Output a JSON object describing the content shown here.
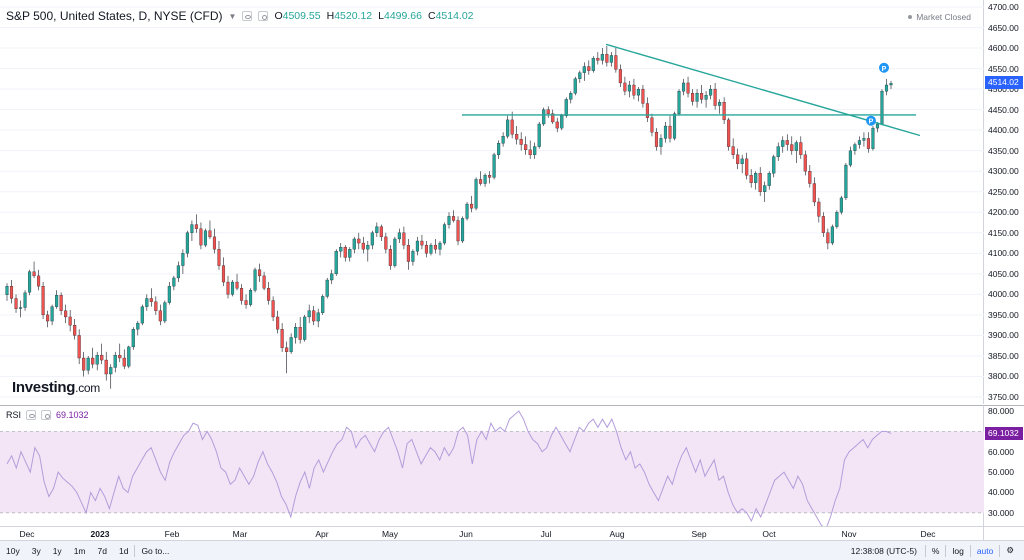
{
  "legend": {
    "symbol": "S&P 500, United States, D, NYSE (CFD)",
    "ohlc": [
      {
        "key": "O",
        "value": "4509.55"
      },
      {
        "key": "H",
        "value": "4520.12"
      },
      {
        "key": "L",
        "value": "4499.66"
      },
      {
        "key": "C",
        "value": "4514.02"
      }
    ]
  },
  "market_status": "Market Closed",
  "last_price_label": "4514.02",
  "logo": {
    "main": "Investing",
    "sub": ".com"
  },
  "rsi": {
    "name": "RSI",
    "value": "69.1032",
    "ticks": [
      "80.000",
      "70.000",
      "60.000",
      "50.000",
      "40.000",
      "30.000"
    ]
  },
  "price_ticks": [
    "4700.00",
    "4650.00",
    "4600.00",
    "4550.00",
    "4500.00",
    "4450.00",
    "4400.00",
    "4350.00",
    "4300.00",
    "4250.00",
    "4200.00",
    "4150.00",
    "4100.00",
    "4050.00",
    "4000.00",
    "3950.00",
    "3900.00",
    "3850.00",
    "3800.00",
    "3750.00"
  ],
  "time_ticks": [
    "Dec",
    "2023",
    "Feb",
    "Mar",
    "Apr",
    "May",
    "Jun",
    "Jul",
    "Aug",
    "Sep",
    "Oct",
    "Nov",
    "Dec"
  ],
  "toolbar": {
    "ranges": [
      "10y",
      "3y",
      "1y",
      "1m",
      "7d",
      "1d"
    ],
    "goto": "Go to...",
    "clock": "12:38:08 (UTC-5)",
    "percent": "%",
    "log": "log",
    "auto": "auto"
  },
  "colors": {
    "up": "#26a69a",
    "down": "#ef5350",
    "trend": "#26a69a",
    "rsi_line": "#b39ddb",
    "rsi_band": "#f3e5f5",
    "accent": "#2962ff"
  },
  "chart_data": {
    "type": "candlestick",
    "ylim": [
      3725,
      4710
    ],
    "candles": [
      [
        3999,
        4027,
        3984,
        4020
      ],
      [
        4020,
        4035,
        3978,
        3990
      ],
      [
        3990,
        4000,
        3955,
        3965
      ],
      [
        3966,
        3985,
        3944,
        3968
      ],
      [
        3968,
        4010,
        3960,
        4004
      ],
      [
        4005,
        4060,
        3998,
        4055
      ],
      [
        4055,
        4080,
        4040,
        4045
      ],
      [
        4045,
        4060,
        4010,
        4020
      ],
      [
        4020,
        4030,
        3940,
        3950
      ],
      [
        3950,
        3960,
        3920,
        3935
      ],
      [
        3935,
        3975,
        3925,
        3970
      ],
      [
        3970,
        4010,
        3965,
        3998
      ],
      [
        3998,
        4005,
        3950,
        3960
      ],
      [
        3960,
        3975,
        3930,
        3945
      ],
      [
        3945,
        3962,
        3910,
        3925
      ],
      [
        3925,
        3940,
        3890,
        3900
      ],
      [
        3900,
        3915,
        3830,
        3845
      ],
      [
        3845,
        3860,
        3800,
        3815
      ],
      [
        3815,
        3850,
        3805,
        3845
      ],
      [
        3845,
        3870,
        3820,
        3830
      ],
      [
        3830,
        3860,
        3815,
        3852
      ],
      [
        3852,
        3880,
        3830,
        3840
      ],
      [
        3840,
        3860,
        3790,
        3806
      ],
      [
        3806,
        3830,
        3770,
        3822
      ],
      [
        3822,
        3860,
        3810,
        3852
      ],
      [
        3852,
        3880,
        3835,
        3845
      ],
      [
        3845,
        3866,
        3818,
        3825
      ],
      [
        3825,
        3875,
        3820,
        3872
      ],
      [
        3872,
        3920,
        3865,
        3915
      ],
      [
        3915,
        3935,
        3900,
        3930
      ],
      [
        3930,
        3975,
        3925,
        3970
      ],
      [
        3970,
        4000,
        3960,
        3990
      ],
      [
        3990,
        4015,
        3970,
        3982
      ],
      [
        3982,
        3995,
        3950,
        3960
      ],
      [
        3960,
        3975,
        3925,
        3935
      ],
      [
        3935,
        3985,
        3930,
        3980
      ],
      [
        3980,
        4030,
        3975,
        4020
      ],
      [
        4020,
        4045,
        4010,
        4040
      ],
      [
        4040,
        4080,
        4030,
        4070
      ],
      [
        4070,
        4110,
        4050,
        4100
      ],
      [
        4100,
        4155,
        4090,
        4150
      ],
      [
        4150,
        4180,
        4130,
        4170
      ],
      [
        4170,
        4195,
        4150,
        4160
      ],
      [
        4160,
        4175,
        4110,
        4120
      ],
      [
        4120,
        4160,
        4115,
        4155
      ],
      [
        4155,
        4180,
        4135,
        4140
      ],
      [
        4140,
        4160,
        4100,
        4110
      ],
      [
        4110,
        4130,
        4060,
        4070
      ],
      [
        4070,
        4090,
        4020,
        4030
      ],
      [
        4030,
        4045,
        3990,
        4000
      ],
      [
        4000,
        4035,
        3995,
        4030
      ],
      [
        4030,
        4050,
        4010,
        4015
      ],
      [
        4015,
        4025,
        3975,
        3985
      ],
      [
        3985,
        4000,
        3965,
        3975
      ],
      [
        3975,
        4015,
        3970,
        4010
      ],
      [
        4010,
        4065,
        4005,
        4060
      ],
      [
        4060,
        4075,
        4030,
        4045
      ],
      [
        4045,
        4055,
        4010,
        4015
      ],
      [
        4015,
        4030,
        3975,
        3985
      ],
      [
        3985,
        3995,
        3935,
        3945
      ],
      [
        3945,
        3960,
        3905,
        3915
      ],
      [
        3915,
        3930,
        3860,
        3870
      ],
      [
        3870,
        3885,
        3808,
        3860
      ],
      [
        3860,
        3905,
        3855,
        3895
      ],
      [
        3895,
        3930,
        3880,
        3920
      ],
      [
        3920,
        3945,
        3880,
        3890
      ],
      [
        3890,
        3950,
        3885,
        3945
      ],
      [
        3945,
        3975,
        3930,
        3960
      ],
      [
        3960,
        3972,
        3925,
        3935
      ],
      [
        3935,
        3965,
        3920,
        3955
      ],
      [
        3955,
        4000,
        3950,
        3995
      ],
      [
        3995,
        4040,
        3990,
        4035
      ],
      [
        4035,
        4060,
        4025,
        4050
      ],
      [
        4050,
        4110,
        4045,
        4105
      ],
      [
        4105,
        4125,
        4090,
        4115
      ],
      [
        4115,
        4120,
        4080,
        4090
      ],
      [
        4090,
        4115,
        4080,
        4110
      ],
      [
        4110,
        4140,
        4100,
        4135
      ],
      [
        4135,
        4150,
        4110,
        4125
      ],
      [
        4125,
        4140,
        4100,
        4110
      ],
      [
        4110,
        4130,
        4080,
        4120
      ],
      [
        4120,
        4155,
        4110,
        4150
      ],
      [
        4150,
        4175,
        4140,
        4165
      ],
      [
        4165,
        4170,
        4130,
        4140
      ],
      [
        4140,
        4150,
        4100,
        4110
      ],
      [
        4110,
        4120,
        4060,
        4070
      ],
      [
        4070,
        4140,
        4065,
        4135
      ],
      [
        4135,
        4160,
        4125,
        4150
      ],
      [
        4150,
        4165,
        4110,
        4120
      ],
      [
        4120,
        4135,
        4060,
        4080
      ],
      [
        4080,
        4110,
        4070,
        4105
      ],
      [
        4105,
        4140,
        4095,
        4130
      ],
      [
        4130,
        4145,
        4110,
        4120
      ],
      [
        4120,
        4130,
        4090,
        4100
      ],
      [
        4100,
        4125,
        4095,
        4120
      ],
      [
        4120,
        4135,
        4100,
        4110
      ],
      [
        4110,
        4130,
        4095,
        4125
      ],
      [
        4125,
        4175,
        4120,
        4170
      ],
      [
        4170,
        4200,
        4160,
        4190
      ],
      [
        4190,
        4205,
        4175,
        4180
      ],
      [
        4180,
        4190,
        4120,
        4130
      ],
      [
        4130,
        4190,
        4125,
        4185
      ],
      [
        4185,
        4225,
        4180,
        4220
      ],
      [
        4220,
        4240,
        4200,
        4210
      ],
      [
        4210,
        4285,
        4205,
        4280
      ],
      [
        4280,
        4300,
        4265,
        4270
      ],
      [
        4270,
        4295,
        4262,
        4290
      ],
      [
        4290,
        4300,
        4270,
        4285
      ],
      [
        4285,
        4345,
        4280,
        4340
      ],
      [
        4340,
        4375,
        4330,
        4368
      ],
      [
        4368,
        4395,
        4360,
        4385
      ],
      [
        4385,
        4435,
        4380,
        4425
      ],
      [
        4425,
        4445,
        4380,
        4390
      ],
      [
        4390,
        4410,
        4365,
        4378
      ],
      [
        4378,
        4395,
        4350,
        4365
      ],
      [
        4365,
        4385,
        4340,
        4352
      ],
      [
        4352,
        4375,
        4330,
        4340
      ],
      [
        4340,
        4370,
        4330,
        4360
      ],
      [
        4360,
        4420,
        4355,
        4415
      ],
      [
        4415,
        4455,
        4410,
        4450
      ],
      [
        4450,
        4458,
        4430,
        4440
      ],
      [
        4440,
        4450,
        4415,
        4420
      ],
      [
        4420,
        4430,
        4395,
        4405
      ],
      [
        4405,
        4440,
        4400,
        4435
      ],
      [
        4435,
        4480,
        4430,
        4475
      ],
      [
        4475,
        4495,
        4465,
        4490
      ],
      [
        4490,
        4530,
        4485,
        4525
      ],
      [
        4525,
        4545,
        4515,
        4540
      ],
      [
        4540,
        4565,
        4520,
        4555
      ],
      [
        4555,
        4570,
        4535,
        4545
      ],
      [
        4545,
        4580,
        4540,
        4575
      ],
      [
        4575,
        4590,
        4560,
        4570
      ],
      [
        4570,
        4600,
        4560,
        4585
      ],
      [
        4585,
        4605,
        4555,
        4565
      ],
      [
        4565,
        4590,
        4555,
        4582
      ],
      [
        4582,
        4600,
        4540,
        4548
      ],
      [
        4548,
        4560,
        4505,
        4515
      ],
      [
        4515,
        4530,
        4485,
        4495
      ],
      [
        4495,
        4520,
        4480,
        4510
      ],
      [
        4510,
        4525,
        4475,
        4485
      ],
      [
        4485,
        4505,
        4470,
        4500
      ],
      [
        4500,
        4510,
        4455,
        4465
      ],
      [
        4465,
        4480,
        4420,
        4430
      ],
      [
        4430,
        4440,
        4385,
        4395
      ],
      [
        4395,
        4405,
        4350,
        4360
      ],
      [
        4360,
        4390,
        4340,
        4380
      ],
      [
        4380,
        4420,
        4370,
        4410
      ],
      [
        4410,
        4435,
        4370,
        4380
      ],
      [
        4380,
        4445,
        4375,
        4440
      ],
      [
        4440,
        4500,
        4435,
        4495
      ],
      [
        4495,
        4525,
        4485,
        4515
      ],
      [
        4515,
        4530,
        4480,
        4490
      ],
      [
        4490,
        4500,
        4460,
        4470
      ],
      [
        4470,
        4500,
        4455,
        4490
      ],
      [
        4490,
        4510,
        4465,
        4475
      ],
      [
        4475,
        4495,
        4455,
        4485
      ],
      [
        4485,
        4510,
        4475,
        4500
      ],
      [
        4500,
        4515,
        4450,
        4460
      ],
      [
        4460,
        4475,
        4440,
        4468
      ],
      [
        4468,
        4480,
        4415,
        4425
      ],
      [
        4425,
        4430,
        4350,
        4360
      ],
      [
        4360,
        4380,
        4330,
        4340
      ],
      [
        4340,
        4355,
        4305,
        4318
      ],
      [
        4318,
        4340,
        4295,
        4330
      ],
      [
        4330,
        4345,
        4280,
        4290
      ],
      [
        4290,
        4305,
        4260,
        4272
      ],
      [
        4272,
        4300,
        4255,
        4295
      ],
      [
        4295,
        4310,
        4240,
        4250
      ],
      [
        4250,
        4275,
        4225,
        4265
      ],
      [
        4265,
        4300,
        4255,
        4295
      ],
      [
        4295,
        4340,
        4285,
        4335
      ],
      [
        4335,
        4370,
        4325,
        4360
      ],
      [
        4360,
        4385,
        4345,
        4375
      ],
      [
        4375,
        4390,
        4350,
        4365
      ],
      [
        4365,
        4385,
        4340,
        4350
      ],
      [
        4350,
        4375,
        4320,
        4370
      ],
      [
        4370,
        4385,
        4330,
        4340
      ],
      [
        4340,
        4350,
        4290,
        4300
      ],
      [
        4300,
        4315,
        4260,
        4270
      ],
      [
        4270,
        4285,
        4215,
        4225
      ],
      [
        4225,
        4235,
        4175,
        4190
      ],
      [
        4190,
        4200,
        4140,
        4150
      ],
      [
        4150,
        4160,
        4110,
        4125
      ],
      [
        4125,
        4170,
        4120,
        4165
      ],
      [
        4165,
        4205,
        4160,
        4200
      ],
      [
        4200,
        4240,
        4195,
        4235
      ],
      [
        4235,
        4320,
        4230,
        4315
      ],
      [
        4315,
        4360,
        4310,
        4350
      ],
      [
        4350,
        4370,
        4340,
        4365
      ],
      [
        4365,
        4385,
        4355,
        4375
      ],
      [
        4375,
        4395,
        4360,
        4380
      ],
      [
        4380,
        4395,
        4345,
        4355
      ],
      [
        4355,
        4410,
        4350,
        4405
      ],
      [
        4405,
        4420,
        4395,
        4415
      ],
      [
        4415,
        4500,
        4412,
        4495
      ],
      [
        4495,
        4525,
        4485,
        4510
      ],
      [
        4510,
        4520,
        4500,
        4514
      ]
    ],
    "trendlines": [
      {
        "from": [
          4609,
          1
        ],
        "to": [
          4387,
          1
        ],
        "note": "descending resistance"
      },
      {
        "level": 4437,
        "note": "horizontal support"
      }
    ],
    "rsi_values": [
      54,
      58,
      52,
      60,
      55,
      50,
      62,
      58,
      45,
      38,
      42,
      50,
      47,
      45,
      43,
      40,
      35,
      30,
      40,
      36,
      42,
      38,
      32,
      40,
      48,
      42,
      40,
      48,
      52,
      56,
      60,
      62,
      56,
      50,
      46,
      55,
      60,
      64,
      68,
      70,
      74,
      73,
      66,
      70,
      66,
      60,
      52,
      50,
      44,
      46,
      52,
      48,
      44,
      48,
      55,
      60,
      54,
      50,
      45,
      38,
      34,
      28,
      38,
      45,
      50,
      42,
      52,
      56,
      50,
      55,
      60,
      64,
      66,
      72,
      70,
      62,
      66,
      68,
      64,
      60,
      66,
      70,
      72,
      66,
      60,
      52,
      64,
      66,
      60,
      54,
      58,
      62,
      60,
      56,
      62,
      58,
      62,
      70,
      72,
      68,
      54,
      66,
      70,
      66,
      74,
      70,
      72,
      70,
      76,
      78,
      80,
      76,
      70,
      66,
      64,
      60,
      62,
      68,
      72,
      68,
      64,
      60,
      66,
      72,
      70,
      74,
      76,
      72,
      76,
      72,
      76,
      70,
      62,
      56,
      60,
      52,
      54,
      50,
      44,
      40,
      36,
      42,
      48,
      44,
      52,
      58,
      62,
      56,
      50,
      56,
      48,
      52,
      56,
      46,
      48,
      40,
      34,
      30,
      32,
      30,
      26,
      32,
      28,
      34,
      40,
      46,
      48,
      50,
      46,
      42,
      48,
      44,
      36,
      32,
      28,
      24,
      22,
      28,
      36,
      42,
      56,
      60,
      62,
      64,
      66,
      62,
      66,
      68,
      70,
      70,
      69
    ]
  }
}
